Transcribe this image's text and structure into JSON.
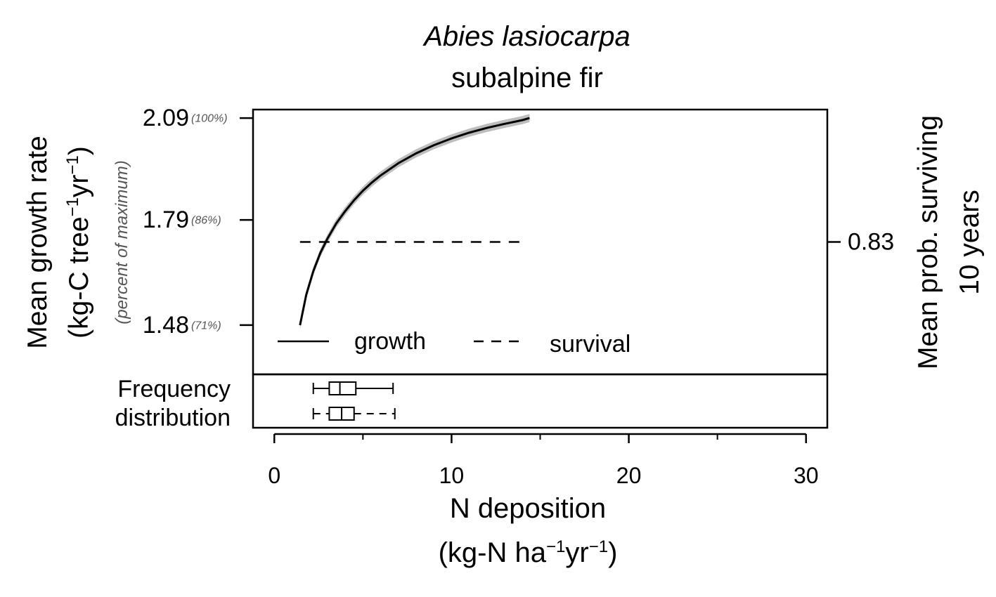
{
  "chart_data": {
    "type": "line",
    "title_species": "Abies lasiocarpa",
    "title_common": "subalpine fir",
    "ylabel_line1": "Mean growth rate",
    "ylabel_line2_pre": "(kg-C tree",
    "ylabel_line2_mid": "yr",
    "ylabel_line2_post": ")",
    "ylabel_sup": "−1",
    "ylabel_sub": "(percent of maximum)",
    "ylabel_right_line1": "Mean prob. surviving",
    "ylabel_right_line2": "10 years",
    "xlabel_line1": "N deposition",
    "xlabel_line2_pre": "(kg-N ha",
    "xlabel_line2_mid": "yr",
    "xlabel_line2_post": ")",
    "xlabel_sup": "−1",
    "x_ticks": [
      0,
      10,
      20,
      30
    ],
    "x_tick_labels": [
      "0",
      "10",
      "20",
      "30"
    ],
    "x_minor_ticks": [
      5,
      15,
      25
    ],
    "xlim": [
      -1.2,
      31.2
    ],
    "ylim": [
      1.335,
      2.115
    ],
    "y_ticks": [
      1.48,
      1.79,
      2.09
    ],
    "y_tick_labels": [
      "1.48",
      "1.79",
      "2.09"
    ],
    "y_pct_labels": [
      "(71%)",
      "(86%)",
      "(100%)"
    ],
    "right_tick_label": "0.83",
    "right_tick_y": 1.725,
    "growth_curve": {
      "name": "growth",
      "x": [
        1.45,
        1.8,
        2.2,
        2.6,
        3.0,
        3.5,
        4.0,
        4.5,
        5.0,
        5.5,
        6.0,
        7.0,
        8.0,
        9.0,
        10.0,
        11.0,
        12.0,
        13.0,
        14.0,
        14.4
      ],
      "y": [
        1.48,
        1.569,
        1.639,
        1.693,
        1.735,
        1.78,
        1.816,
        1.848,
        1.876,
        1.9,
        1.921,
        1.957,
        1.986,
        2.01,
        2.03,
        2.047,
        2.061,
        2.073,
        2.084,
        2.09
      ],
      "ci_halfwidth": 0.012,
      "color": "#000000",
      "ci_color": "#bdbdbd"
    },
    "survival_line": {
      "name": "survival",
      "x": [
        1.45,
        14.0
      ],
      "y": 1.725,
      "style": "dashed"
    },
    "legend": {
      "growth": "growth",
      "survival": "survival",
      "placement": "bottom-left"
    },
    "frequency_label_line1": "Frequency",
    "frequency_label_line2": "distribution",
    "boxplots": [
      {
        "name": "growth",
        "whisker_low": 2.2,
        "q1": 3.1,
        "median": 3.7,
        "q3": 4.6,
        "whisker_high": 6.7,
        "whisker_style": "solid"
      },
      {
        "name": "survival",
        "whisker_low": 2.2,
        "q1": 3.1,
        "median": 3.8,
        "q3": 4.5,
        "whisker_high": 6.8,
        "whisker_style": "dashed"
      }
    ]
  }
}
